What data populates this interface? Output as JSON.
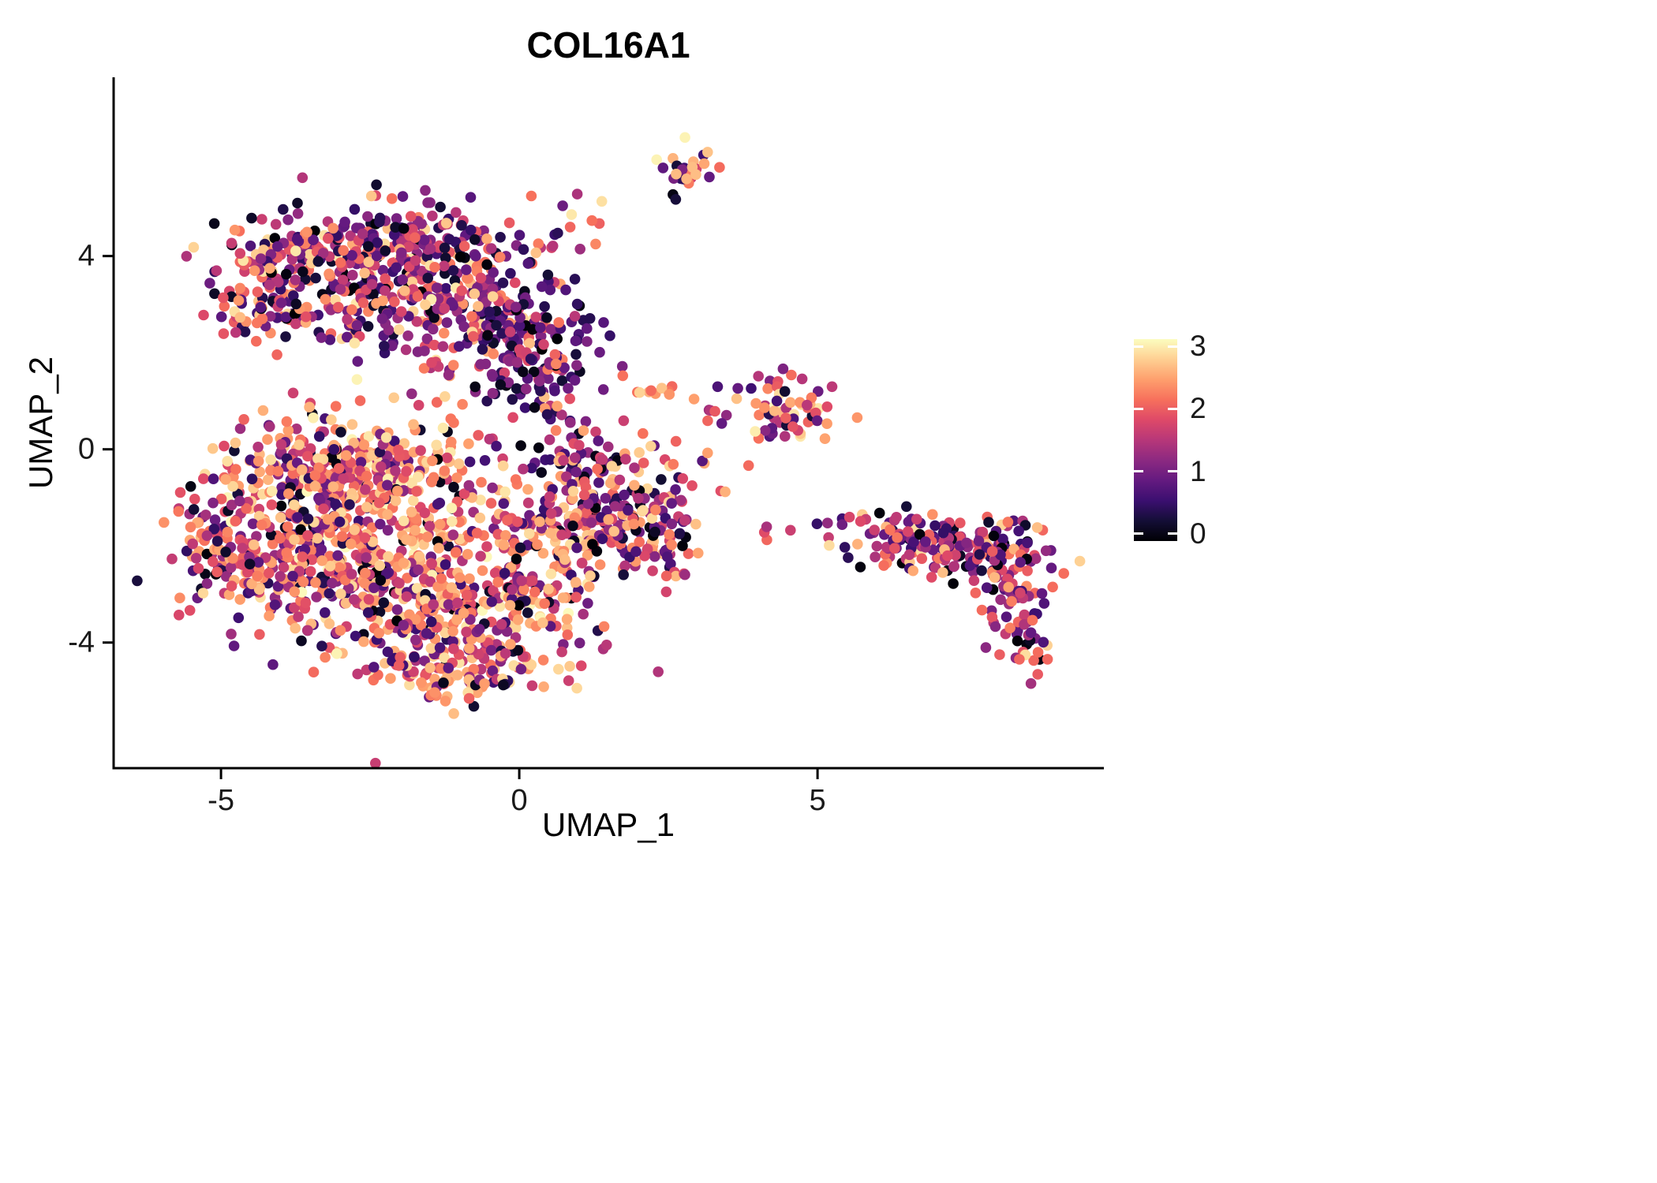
{
  "chart_data": {
    "type": "scatter",
    "title": "COL16A1",
    "xlabel": "UMAP_1",
    "ylabel": "UMAP_2",
    "xlim": [
      -6.8,
      9.8
    ],
    "ylim": [
      -6.6,
      7.7
    ],
    "x_ticks": [
      -5,
      0,
      5
    ],
    "y_ticks": [
      4,
      0,
      -4
    ],
    "grid": false,
    "background": "#ffffff",
    "point_radius_px": 6.8,
    "seed": 7,
    "color_scale": {
      "name": "magma",
      "domain": [
        0,
        3
      ],
      "legend_position": "right",
      "legend_ticks": [
        3,
        2,
        1,
        0
      ],
      "stops": [
        "#000004",
        "#140e36",
        "#3b0f70",
        "#641a80",
        "#8c2981",
        "#b73779",
        "#de4968",
        "#f7705c",
        "#fe9f6d",
        "#fecf92",
        "#fcfdbf"
      ]
    },
    "clusters": [
      {
        "name": "top-satellite",
        "cx": 2.75,
        "cy": 5.85,
        "sdx": 0.22,
        "sdy": 0.2,
        "n": 26,
        "bands": [
          [
            0,
            0.35,
            0.1
          ],
          [
            0.5,
            1.5,
            0.3
          ],
          [
            1.7,
            2.6,
            0.5
          ],
          [
            2.6,
            3,
            0.1
          ]
        ]
      },
      {
        "name": "top-satellite-stragglers",
        "cx": 2.6,
        "cy": 5.25,
        "sdx": 0.08,
        "sdy": 0.12,
        "n": 2,
        "bands": [
          [
            0,
            0.35,
            0.5
          ],
          [
            1.7,
            2.4,
            0.5
          ]
        ]
      },
      {
        "name": "upper-blob-top-left",
        "cx": -2.9,
        "cy": 4.15,
        "sdx": 0.85,
        "sdy": 0.45,
        "n": 170,
        "bands": [
          [
            0,
            0.35,
            0.1
          ],
          [
            0.4,
            1.5,
            0.45
          ],
          [
            1.5,
            2.4,
            0.33
          ],
          [
            2.4,
            2.9,
            0.12
          ]
        ]
      },
      {
        "name": "upper-blob-top-right",
        "cx": -1.6,
        "cy": 4.15,
        "sdx": 0.7,
        "sdy": 0.5,
        "n": 150,
        "bands": [
          [
            0,
            0.35,
            0.1
          ],
          [
            0.4,
            1.5,
            0.45
          ],
          [
            1.5,
            2.4,
            0.33
          ],
          [
            2.4,
            2.9,
            0.12
          ]
        ]
      },
      {
        "name": "upper-blob-left-lobe",
        "cx": -4.1,
        "cy": 3.2,
        "sdx": 0.55,
        "sdy": 0.55,
        "n": 110,
        "bands": [
          [
            0,
            0.35,
            0.07
          ],
          [
            0.4,
            1.5,
            0.38
          ],
          [
            1.5,
            2.4,
            0.4
          ],
          [
            2.4,
            2.9,
            0.15
          ]
        ]
      },
      {
        "name": "upper-blob-center",
        "cx": -1.9,
        "cy": 2.9,
        "sdx": 0.95,
        "sdy": 0.6,
        "n": 160,
        "bands": [
          [
            0,
            0.35,
            0.1
          ],
          [
            0.4,
            1.5,
            0.45
          ],
          [
            1.5,
            2.4,
            0.33
          ],
          [
            2.4,
            2.9,
            0.12
          ]
        ]
      },
      {
        "name": "upper-blob-center-right",
        "cx": -0.4,
        "cy": 2.9,
        "sdx": 0.5,
        "sdy": 0.55,
        "n": 90,
        "bands": [
          [
            0,
            0.35,
            0.1
          ],
          [
            0.4,
            1.5,
            0.45
          ],
          [
            1.5,
            2.4,
            0.33
          ],
          [
            2.4,
            2.9,
            0.12
          ]
        ]
      },
      {
        "name": "upper-blob-dark-core",
        "cx": 0.3,
        "cy": 1.9,
        "sdx": 0.5,
        "sdy": 0.62,
        "n": 140,
        "bands": [
          [
            0,
            0.35,
            0.22
          ],
          [
            0.35,
            1.3,
            0.58
          ],
          [
            1.3,
            2.2,
            0.16
          ],
          [
            2.2,
            2.7,
            0.04
          ]
        ]
      },
      {
        "name": "upper-blob-trail",
        "cx": 0.75,
        "cy": 4.1,
        "sdx": 0.3,
        "sdy": 0.75,
        "n": 24,
        "bands": [
          [
            0,
            0.35,
            0.1
          ],
          [
            0.4,
            1.5,
            0.45
          ],
          [
            1.5,
            2.4,
            0.33
          ],
          [
            2.4,
            2.9,
            0.12
          ]
        ]
      },
      {
        "name": "mid-right-cluster",
        "cx": 4.55,
        "cy": 0.9,
        "sdx": 0.42,
        "sdy": 0.38,
        "n": 60,
        "bands": [
          [
            0,
            0.35,
            0.08
          ],
          [
            0.4,
            1.5,
            0.3
          ],
          [
            1.5,
            2.5,
            0.42
          ],
          [
            2.5,
            3,
            0.2
          ]
        ]
      },
      {
        "name": "mid-small-pair",
        "cx": 2.35,
        "cy": 1.25,
        "sdx": 0.16,
        "sdy": 0.12,
        "n": 9,
        "bands": [
          [
            1.8,
            2.6,
            0.7
          ],
          [
            2.6,
            3,
            0.3
          ]
        ]
      },
      {
        "name": "mid-connectors",
        "cx": 3.3,
        "cy": 0.75,
        "sdx": 0.6,
        "sdy": 0.45,
        "n": 14,
        "bands": [
          [
            0.4,
            1.5,
            0.5
          ],
          [
            1.5,
            2.5,
            0.5
          ]
        ]
      },
      {
        "name": "main-blob-upper",
        "cx": -3.3,
        "cy": -0.4,
        "sdx": 0.95,
        "sdy": 0.6,
        "n": 270,
        "bands": [
          [
            0,
            0.35,
            0.06
          ],
          [
            0.4,
            1.3,
            0.16
          ],
          [
            1.3,
            2.1,
            0.3
          ],
          [
            2.1,
            2.7,
            0.38
          ],
          [
            2.7,
            3,
            0.1
          ]
        ]
      },
      {
        "name": "main-blob-left",
        "cx": -3.8,
        "cy": -2.3,
        "sdx": 0.85,
        "sdy": 0.75,
        "n": 280,
        "bands": [
          [
            0,
            0.35,
            0.08
          ],
          [
            0.4,
            1.3,
            0.22
          ],
          [
            1.3,
            2.1,
            0.3
          ],
          [
            2.1,
            2.7,
            0.32
          ],
          [
            2.7,
            3,
            0.08
          ]
        ]
      },
      {
        "name": "main-blob-center",
        "cx": -1.9,
        "cy": -1.4,
        "sdx": 1.0,
        "sdy": 0.85,
        "n": 300,
        "bands": [
          [
            0,
            0.35,
            0.06
          ],
          [
            0.4,
            1.3,
            0.16
          ],
          [
            1.3,
            2.1,
            0.3
          ],
          [
            2.1,
            2.7,
            0.38
          ],
          [
            2.7,
            3,
            0.1
          ]
        ]
      },
      {
        "name": "main-blob-lower",
        "cx": -1.4,
        "cy": -3.5,
        "sdx": 1.15,
        "sdy": 0.65,
        "n": 260,
        "bands": [
          [
            0,
            0.35,
            0.08
          ],
          [
            0.4,
            1.3,
            0.22
          ],
          [
            1.3,
            2.1,
            0.3
          ],
          [
            2.1,
            2.7,
            0.32
          ],
          [
            2.7,
            3,
            0.08
          ]
        ]
      },
      {
        "name": "main-blob-bottom-edge",
        "cx": -1.0,
        "cy": -4.7,
        "sdx": 0.75,
        "sdy": 0.28,
        "n": 90,
        "bands": [
          [
            0,
            0.35,
            0.05
          ],
          [
            0.4,
            1.4,
            0.15
          ],
          [
            1.5,
            2.2,
            0.35
          ],
          [
            2.2,
            2.8,
            0.45
          ]
        ]
      },
      {
        "name": "main-blob-lower-right",
        "cx": 0.4,
        "cy": -2.4,
        "sdx": 0.7,
        "sdy": 0.85,
        "n": 160,
        "bands": [
          [
            0,
            0.35,
            0.08
          ],
          [
            0.4,
            1.3,
            0.22
          ],
          [
            1.3,
            2.1,
            0.3
          ],
          [
            2.1,
            2.7,
            0.32
          ],
          [
            2.7,
            3,
            0.08
          ]
        ]
      },
      {
        "name": "main-blob-right-lobe",
        "cx": 1.5,
        "cy": -1.1,
        "sdx": 0.7,
        "sdy": 0.65,
        "n": 170,
        "bands": [
          [
            0,
            0.35,
            0.08
          ],
          [
            0.4,
            1.4,
            0.3
          ],
          [
            1.4,
            2.2,
            0.34
          ],
          [
            2.2,
            2.8,
            0.28
          ]
        ]
      },
      {
        "name": "main-blob-right-tip",
        "cx": 2.4,
        "cy": -1.7,
        "sdx": 0.4,
        "sdy": 0.45,
        "n": 60,
        "bands": [
          [
            0,
            0.35,
            0.12
          ],
          [
            0.4,
            1.4,
            0.38
          ],
          [
            1.4,
            2.3,
            0.38
          ],
          [
            2.3,
            2.8,
            0.12
          ]
        ]
      },
      {
        "name": "main-blob-left-edge",
        "cx": -5.1,
        "cy": -1.7,
        "sdx": 0.25,
        "sdy": 0.55,
        "n": 40,
        "bands": [
          [
            0,
            0.35,
            0.08
          ],
          [
            0.4,
            1.3,
            0.22
          ],
          [
            1.3,
            2.1,
            0.3
          ],
          [
            2.1,
            2.7,
            0.32
          ],
          [
            2.7,
            3,
            0.08
          ]
        ]
      },
      {
        "name": "main-blob-top-bridge",
        "cx": 1.0,
        "cy": 0.1,
        "sdx": 0.5,
        "sdy": 0.4,
        "n": 40,
        "bands": [
          [
            0,
            0.35,
            0.15
          ],
          [
            0.4,
            1.4,
            0.5
          ],
          [
            1.4,
            2.3,
            0.3
          ],
          [
            2.3,
            2.8,
            0.05
          ]
        ]
      },
      {
        "name": "right-arm-inner",
        "cx": 6.6,
        "cy": -1.9,
        "sdx": 0.5,
        "sdy": 0.3,
        "n": 100,
        "bands": [
          [
            0,
            0.35,
            0.12
          ],
          [
            0.4,
            1.4,
            0.38
          ],
          [
            1.4,
            2.3,
            0.38
          ],
          [
            2.3,
            2.8,
            0.12
          ]
        ]
      },
      {
        "name": "right-arm-outer",
        "cx": 7.9,
        "cy": -2.1,
        "sdx": 0.5,
        "sdy": 0.32,
        "n": 100,
        "bands": [
          [
            0,
            0.35,
            0.12
          ],
          [
            0.4,
            1.4,
            0.38
          ],
          [
            1.4,
            2.3,
            0.38
          ],
          [
            2.3,
            2.8,
            0.12
          ]
        ]
      },
      {
        "name": "right-arm-tail",
        "cx": 8.35,
        "cy": -3.3,
        "sdx": 0.28,
        "sdy": 0.55,
        "n": 70,
        "bands": [
          [
            0,
            0.35,
            0.12
          ],
          [
            0.4,
            1.5,
            0.45
          ],
          [
            1.5,
            2.3,
            0.33
          ],
          [
            2.3,
            2.8,
            0.1
          ]
        ]
      },
      {
        "name": "right-arm-connectors",
        "cx": 4.9,
        "cy": -1.8,
        "sdx": 0.8,
        "sdy": 0.25,
        "n": 12,
        "bands": [
          [
            0,
            0.35,
            0.12
          ],
          [
            0.4,
            1.4,
            0.38
          ],
          [
            1.4,
            2.3,
            0.38
          ],
          [
            2.3,
            2.8,
            0.12
          ]
        ]
      },
      {
        "name": "right-arm-tail-tip",
        "cx": 8.7,
        "cy": -4.0,
        "sdx": 0.18,
        "sdy": 0.18,
        "n": 10,
        "bands": [
          [
            0,
            0.35,
            0.12
          ],
          [
            0.4,
            1.4,
            0.38
          ],
          [
            1.4,
            2.3,
            0.38
          ],
          [
            2.3,
            2.8,
            0.12
          ]
        ]
      }
    ]
  }
}
